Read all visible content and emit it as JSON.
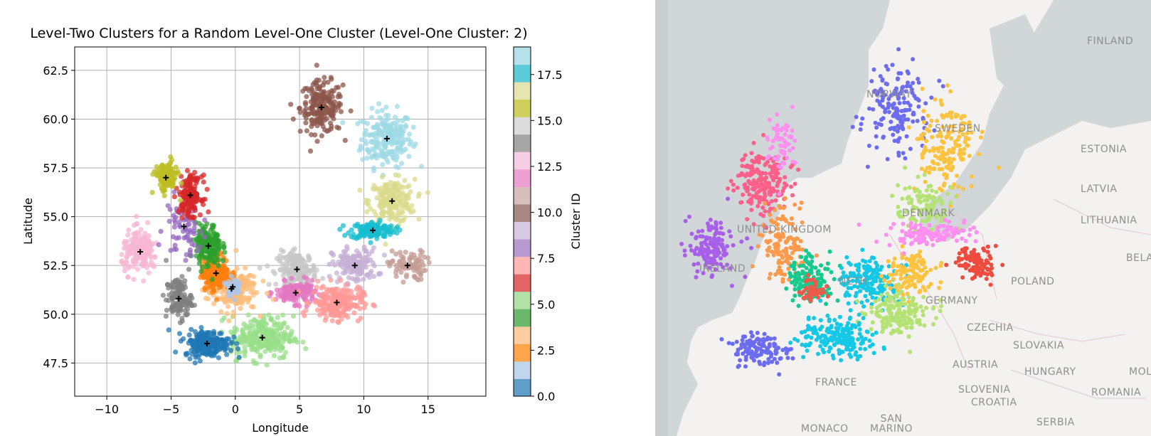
{
  "chart_data": {
    "type": "scatter",
    "title": "Level-Two Clusters for a Random Level-One Cluster (Level-One Cluster: 2)",
    "xlabel": "Longitude",
    "ylabel": "Latitude",
    "xlim": [
      -12.5,
      19.5
    ],
    "ylim": [
      45.8,
      63.7
    ],
    "xticks": [
      -10,
      -5,
      0,
      5,
      10,
      15
    ],
    "xtick_labels": [
      "−10",
      "−5",
      "0",
      "5",
      "10",
      "15"
    ],
    "yticks": [
      47.5,
      50.0,
      52.5,
      55.0,
      57.5,
      60.0,
      62.5
    ],
    "ytick_labels": [
      "47.5",
      "50.0",
      "52.5",
      "55.0",
      "57.5",
      "60.0",
      "62.5"
    ],
    "grid": true,
    "colormap": "tab20",
    "colorbar": {
      "label": "Cluster ID",
      "min": 0.0,
      "max": 19.0,
      "ticks": [
        0.0,
        2.5,
        5.0,
        7.5,
        10.0,
        12.5,
        15.0,
        17.5
      ],
      "tick_labels": [
        "0.0",
        "2.5",
        "5.0",
        "7.5",
        "10.0",
        "12.5",
        "15.0",
        "17.5"
      ],
      "colors": [
        "#5f9ec9",
        "#c1d5ec",
        "#ffa54d",
        "#ffcd9f",
        "#6bb76b",
        "#b2e2a7",
        "#e36566",
        "#ffb6b5",
        "#b69ad0",
        "#d8cae3",
        "#a98782",
        "#d7c0bb",
        "#eb9fd3",
        "#f6cde3",
        "#a6a6a6",
        "#dcdcdc",
        "#cfcf5c",
        "#e5e5b0",
        "#5ccdd8",
        "#b8e2eb"
      ]
    },
    "clusters": [
      {
        "id": 0,
        "color": "#1f77b4",
        "centroid": [
          -2.2,
          48.5
        ]
      },
      {
        "id": 1,
        "color": "#aec7e8",
        "centroid": [
          -0.2,
          51.4
        ]
      },
      {
        "id": 2,
        "color": "#ff7f0e",
        "centroid": [
          -1.5,
          52.1
        ]
      },
      {
        "id": 3,
        "color": "#ffbb78",
        "centroid": [
          -0.3,
          51.3
        ]
      },
      {
        "id": 4,
        "color": "#2ca02c",
        "centroid": [
          -2.1,
          53.5
        ]
      },
      {
        "id": 5,
        "color": "#98df8a",
        "centroid": [
          2.1,
          48.8
        ]
      },
      {
        "id": 6,
        "color": "#d62728",
        "centroid": [
          -3.5,
          56.1
        ]
      },
      {
        "id": 7,
        "color": "#ff9896",
        "centroid": [
          7.9,
          50.6
        ]
      },
      {
        "id": 8,
        "color": "#9467bd",
        "centroid": [
          -4.0,
          54.5
        ]
      },
      {
        "id": 9,
        "color": "#c5b0d5",
        "centroid": [
          9.3,
          52.5
        ]
      },
      {
        "id": 10,
        "color": "#8c564b",
        "centroid": [
          6.7,
          60.6
        ]
      },
      {
        "id": 11,
        "color": "#c49c94",
        "centroid": [
          13.4,
          52.5
        ]
      },
      {
        "id": 12,
        "color": "#e377c2",
        "centroid": [
          4.7,
          51.1
        ]
      },
      {
        "id": 13,
        "color": "#f7b6d2",
        "centroid": [
          -7.4,
          53.2
        ]
      },
      {
        "id": 14,
        "color": "#7f7f7f",
        "centroid": [
          -4.4,
          50.8
        ]
      },
      {
        "id": 15,
        "color": "#c7c7c7",
        "centroid": [
          4.8,
          52.3
        ]
      },
      {
        "id": 16,
        "color": "#bcbd22",
        "centroid": [
          -5.4,
          57.0
        ]
      },
      {
        "id": 17,
        "color": "#dbdb8d",
        "centroid": [
          12.2,
          55.8
        ]
      },
      {
        "id": 18,
        "color": "#17becf",
        "centroid": [
          10.7,
          54.3
        ]
      },
      {
        "id": 19,
        "color": "#9edae5",
        "centroid": [
          11.8,
          59.0
        ]
      }
    ]
  },
  "map": {
    "labels": {
      "finland": "FINLAND",
      "norway": "NORWAY",
      "sweden": "SWEDEN",
      "estonia": "ESTONIA",
      "latvia": "LATVIA",
      "lithuania": "LITHUANIA",
      "belarus": "BELARU",
      "denmark": "DENMARK",
      "united_kingdom": "UNITED KINGDOM",
      "ireland": "IRELAND",
      "netherlands": "NETH",
      "poland": "POLAND",
      "germany": "GERMANY",
      "czechia": "CZECHIA",
      "slovakia": "SLOVAKIA",
      "austria": "AUSTRIA",
      "hungary": "HUNGARY",
      "moldova": "MOLDO",
      "slovenia": "SLOVENIA",
      "croatia": "CROATIA",
      "romania": "ROMANIA",
      "france": "FRANCE",
      "serbia": "SERBIA",
      "monaco": "MONACO",
      "san_marino": "SAN\nMARINO"
    }
  }
}
